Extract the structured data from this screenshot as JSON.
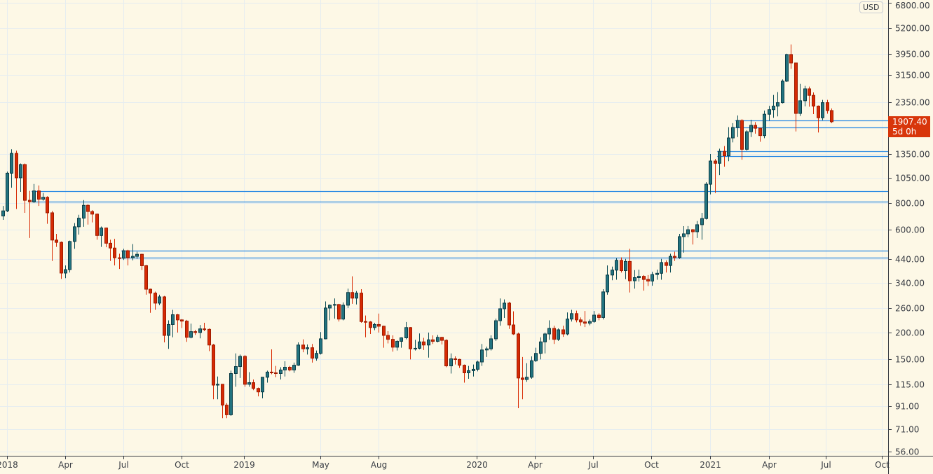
{
  "chart_data": {
    "type": "candlestick",
    "scale": "log",
    "currency": "USD",
    "last_price": "1907.40",
    "countdown": "5d 0h",
    "colors": {
      "up_fill": "#22737f",
      "up_border": "#0b3b45",
      "up_wick": "#0b4d57",
      "down_fill": "#d62a04",
      "down_border": "#9e1b00",
      "down_wick": "#d92b04",
      "level": "#2d8be3",
      "background": "#fdf8e6",
      "grid": "#e6edf0",
      "axis": "#3a3e45",
      "price_label": "#d8360b"
    },
    "ylim": [
      54,
      6900
    ],
    "y_ticks": [
      "6800.00",
      "5200.00",
      "3950.00",
      "3150.00",
      "2350.00",
      "1350.00",
      "1050.00",
      "800.00",
      "600.00",
      "440.00",
      "340.00",
      "260.00",
      "200.00",
      "150.00",
      "115.00",
      "91.00",
      "71.00",
      "56.00"
    ],
    "x_ticks": [
      {
        "label": "2018",
        "week": 1
      },
      {
        "label": "Apr",
        "week": 14
      },
      {
        "label": "Jul",
        "week": 27
      },
      {
        "label": "Oct",
        "week": 40
      },
      {
        "label": "2019",
        "week": 53.9
      },
      {
        "label": "May",
        "week": 71
      },
      {
        "label": "Aug",
        "week": 84
      },
      {
        "label": "2020",
        "week": 105.8
      },
      {
        "label": "Apr",
        "week": 118.8
      },
      {
        "label": "Jul",
        "week": 131.8
      },
      {
        "label": "Oct",
        "week": 144.8
      },
      {
        "label": "2021",
        "week": 158
      },
      {
        "label": "Apr",
        "week": 171
      },
      {
        "label": "Jul",
        "week": 183.7
      },
      {
        "label": "Oct",
        "week": 196.3
      }
    ],
    "levels": [
      {
        "price": 910,
        "from_week": 7
      },
      {
        "price": 810,
        "from_week": 7
      },
      {
        "price": 480,
        "from_week": 27
      },
      {
        "price": 445,
        "from_week": 27
      },
      {
        "price": 1390,
        "from_week": 160
      },
      {
        "price": 1325,
        "from_week": 160
      },
      {
        "price": 1933,
        "from_week": 164
      },
      {
        "price": 1794,
        "from_week": 164
      }
    ],
    "ohlc": [
      [
        696,
        775,
        668,
        735
      ],
      [
        735,
        1120,
        725,
        1100
      ],
      [
        1100,
        1420,
        942,
        1360
      ],
      [
        1360,
        1400,
        750,
        1047
      ],
      [
        1047,
        1220,
        901,
        1207
      ],
      [
        1207,
        1220,
        720,
        823
      ],
      [
        823,
        910,
        550,
        810
      ],
      [
        810,
        980,
        800,
        910
      ],
      [
        910,
        965,
        775,
        833
      ],
      [
        833,
        890,
        820,
        850
      ],
      [
        850,
        860,
        640,
        720
      ],
      [
        720,
        735,
        430,
        538
      ],
      [
        538,
        575,
        500,
        525
      ],
      [
        525,
        530,
        355,
        378
      ],
      [
        378,
        410,
        358,
        392
      ],
      [
        392,
        535,
        380,
        530
      ],
      [
        530,
        645,
        490,
        620
      ],
      [
        620,
        705,
        570,
        680
      ],
      [
        680,
        825,
        620,
        780
      ],
      [
        780,
        790,
        635,
        730
      ],
      [
        730,
        741,
        650,
        710
      ],
      [
        710,
        715,
        540,
        565
      ],
      [
        565,
        622,
        500,
        612
      ],
      [
        612,
        615,
        498,
        520
      ],
      [
        520,
        540,
        430,
        494
      ],
      [
        494,
        545,
        410,
        445
      ],
      [
        445,
        465,
        395,
        443
      ],
      [
        443,
        490,
        435,
        480
      ],
      [
        480,
        485,
        410,
        445
      ],
      [
        445,
        515,
        433,
        452
      ],
      [
        452,
        475,
        440,
        462
      ],
      [
        462,
        465,
        390,
        409
      ],
      [
        409,
        412,
        300,
        318
      ],
      [
        318,
        320,
        247,
        305
      ],
      [
        305,
        310,
        255,
        274
      ],
      [
        274,
        300,
        268,
        293
      ],
      [
        293,
        296,
        180,
        194
      ],
      [
        194,
        228,
        168,
        218
      ],
      [
        218,
        255,
        190,
        242
      ],
      [
        242,
        244,
        200,
        229
      ],
      [
        229,
        231,
        210,
        226
      ],
      [
        226,
        229,
        181,
        190
      ],
      [
        190,
        220,
        188,
        202
      ],
      [
        202,
        206,
        195,
        200
      ],
      [
        200,
        217,
        188,
        208
      ],
      [
        208,
        222,
        203,
        207
      ],
      [
        207,
        209,
        164,
        175
      ],
      [
        175,
        177,
        98,
        114
      ],
      [
        114,
        125,
        98,
        115
      ],
      [
        115,
        115,
        80,
        92
      ],
      [
        92,
        94,
        80,
        83
      ],
      [
        83,
        133,
        82,
        129
      ],
      [
        129,
        160,
        112,
        139
      ],
      [
        139,
        158,
        123,
        155
      ],
      [
        155,
        157,
        112,
        115
      ],
      [
        115,
        131,
        112,
        117
      ],
      [
        117,
        121,
        108,
        110
      ],
      [
        110,
        111,
        101,
        106
      ],
      [
        106,
        124,
        99,
        124
      ],
      [
        124,
        133,
        117,
        131
      ],
      [
        131,
        167,
        128,
        130
      ],
      [
        130,
        140,
        124,
        129
      ],
      [
        129,
        138,
        121,
        134
      ],
      [
        134,
        147,
        125,
        138
      ],
      [
        138,
        140,
        132,
        134
      ],
      [
        134,
        145,
        130,
        141
      ],
      [
        141,
        180,
        140,
        175
      ],
      [
        175,
        186,
        162,
        168
      ],
      [
        168,
        176,
        158,
        170
      ],
      [
        170,
        177,
        145,
        152
      ],
      [
        152,
        165,
        148,
        160
      ],
      [
        160,
        201,
        158,
        187
      ],
      [
        187,
        279,
        186,
        260
      ],
      [
        260,
        270,
        228,
        268
      ],
      [
        268,
        288,
        232,
        270
      ],
      [
        270,
        272,
        225,
        231
      ],
      [
        231,
        276,
        228,
        268
      ],
      [
        268,
        320,
        260,
        307
      ],
      [
        307,
        365,
        272,
        289
      ],
      [
        289,
        312,
        270,
        305
      ],
      [
        305,
        318,
        222,
        225
      ],
      [
        225,
        240,
        190,
        224
      ],
      [
        224,
        226,
        197,
        211
      ],
      [
        211,
        222,
        205,
        218
      ],
      [
        218,
        245,
        200,
        214
      ],
      [
        214,
        215,
        170,
        194
      ],
      [
        194,
        203,
        178,
        186
      ],
      [
        186,
        194,
        163,
        171
      ],
      [
        171,
        184,
        165,
        182
      ],
      [
        182,
        190,
        170,
        189
      ],
      [
        189,
        224,
        186,
        211
      ],
      [
        211,
        212,
        150,
        168
      ],
      [
        168,
        185,
        165,
        169
      ],
      [
        169,
        198,
        167,
        181
      ],
      [
        181,
        189,
        166,
        175
      ],
      [
        175,
        200,
        153,
        185
      ],
      [
        185,
        194,
        177,
        182
      ],
      [
        182,
        195,
        180,
        190
      ],
      [
        190,
        191,
        176,
        184
      ],
      [
        184,
        186,
        138,
        140
      ],
      [
        140,
        160,
        129,
        151
      ],
      [
        151,
        155,
        142,
        150
      ],
      [
        150,
        151,
        137,
        141
      ],
      [
        141,
        142,
        117,
        130
      ],
      [
        130,
        140,
        122,
        133
      ],
      [
        133,
        142,
        125,
        135
      ],
      [
        135,
        148,
        132,
        146
      ],
      [
        146,
        177,
        140,
        166
      ],
      [
        166,
        172,
        154,
        168
      ],
      [
        168,
        194,
        165,
        187
      ],
      [
        187,
        232,
        183,
        227
      ],
      [
        227,
        288,
        215,
        258
      ],
      [
        258,
        285,
        234,
        274
      ],
      [
        274,
        278,
        208,
        217
      ],
      [
        217,
        251,
        195,
        197
      ],
      [
        197,
        200,
        89,
        123
      ],
      [
        123,
        154,
        98,
        121
      ],
      [
        121,
        144,
        118,
        124
      ],
      [
        124,
        155,
        122,
        148
      ],
      [
        148,
        170,
        146,
        160
      ],
      [
        160,
        190,
        150,
        181
      ],
      [
        181,
        200,
        160,
        197
      ],
      [
        197,
        228,
        185,
        209
      ],
      [
        209,
        215,
        177,
        186
      ],
      [
        186,
        209,
        183,
        206
      ],
      [
        206,
        215,
        191,
        197
      ],
      [
        197,
        248,
        194,
        231
      ],
      [
        231,
        255,
        225,
        245
      ],
      [
        245,
        253,
        223,
        229
      ],
      [
        229,
        235,
        215,
        224
      ],
      [
        224,
        252,
        212,
        221
      ],
      [
        221,
        230,
        216,
        225
      ],
      [
        225,
        252,
        222,
        241
      ],
      [
        241,
        246,
        228,
        235
      ],
      [
        235,
        318,
        230,
        309
      ],
      [
        309,
        410,
        300,
        370
      ],
      [
        370,
        405,
        350,
        390
      ],
      [
        390,
        443,
        352,
        433
      ],
      [
        433,
        447,
        380,
        388
      ],
      [
        388,
        440,
        354,
        428
      ],
      [
        428,
        490,
        307,
        348
      ],
      [
        348,
        390,
        320,
        360
      ],
      [
        360,
        392,
        345,
        365
      ],
      [
        365,
        370,
        313,
        353
      ],
      [
        353,
        370,
        329,
        347
      ],
      [
        347,
        383,
        330,
        372
      ],
      [
        372,
        392,
        352,
        377
      ],
      [
        377,
        440,
        352,
        423
      ],
      [
        423,
        433,
        380,
        410
      ],
      [
        410,
        465,
        380,
        452
      ],
      [
        452,
        475,
        430,
        446
      ],
      [
        446,
        575,
        440,
        558
      ],
      [
        558,
        624,
        470,
        575
      ],
      [
        575,
        625,
        555,
        601
      ],
      [
        601,
        605,
        513,
        588
      ],
      [
        588,
        660,
        550,
        634
      ],
      [
        634,
        720,
        540,
        677
      ],
      [
        677,
        1000,
        670,
        978
      ],
      [
        978,
        1350,
        877,
        1253
      ],
      [
        1253,
        1280,
        890,
        1223
      ],
      [
        1223,
        1430,
        1078,
        1390
      ],
      [
        1390,
        1470,
        1180,
        1325
      ],
      [
        1325,
        1800,
        1250,
        1604
      ],
      [
        1604,
        1880,
        1530,
        1794
      ],
      [
        1794,
        2040,
        1620,
        1933
      ],
      [
        1933,
        1960,
        1270,
        1420
      ],
      [
        1420,
        1740,
        1400,
        1714
      ],
      [
        1714,
        1950,
        1620,
        1835
      ],
      [
        1835,
        1900,
        1680,
        1780
      ],
      [
        1780,
        1790,
        1540,
        1645
      ],
      [
        1645,
        2150,
        1600,
        2067
      ],
      [
        2067,
        2260,
        1930,
        2170
      ],
      [
        2170,
        2540,
        1990,
        2255
      ],
      [
        2255,
        2620,
        2020,
        2340
      ],
      [
        2340,
        3000,
        2320,
        2945
      ],
      [
        2945,
        3950,
        2920,
        3915
      ],
      [
        3915,
        4360,
        3360,
        3577
      ],
      [
        3577,
        3590,
        1720,
        2085
      ],
      [
        2085,
        2860,
        2030,
        2388
      ],
      [
        2388,
        2800,
        2250,
        2712
      ],
      [
        2712,
        2780,
        2240,
        2530
      ],
      [
        2530,
        2610,
        2070,
        2255
      ],
      [
        2255,
        2270,
        1700,
        1990
      ],
      [
        1990,
        2410,
        1940,
        2340
      ],
      [
        2340,
        2410,
        2080,
        2150
      ],
      [
        2150,
        2200,
        1880,
        1907.4
      ]
    ]
  }
}
